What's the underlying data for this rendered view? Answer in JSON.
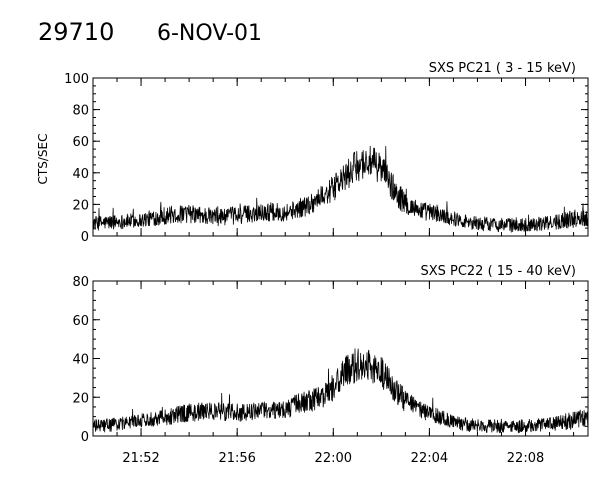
{
  "header": {
    "id": "29710",
    "date": "6-NOV-01"
  },
  "chart_data": [
    {
      "type": "line",
      "title": "SXS PC21  (  3 - 15 keV)",
      "ylabel": "CTS/SEC",
      "xlabel": "",
      "ylim": [
        0,
        100
      ],
      "yticks": [
        0,
        20,
        40,
        60,
        80,
        100
      ],
      "xlim_minutes": [
        -2,
        18.6
      ],
      "xticks": [
        "21:52",
        "21:56",
        "22:00",
        "22:04",
        "22:08"
      ],
      "xtick_minutes": [
        0,
        4,
        8,
        12,
        16
      ],
      "x_time_start": "21:52",
      "grid": false,
      "series": [
        {
          "values_profile": {
            "x_minutes": [
              -2.0,
              -1.0,
              0.0,
              1.0,
              2.0,
              3.0,
              4.0,
              5.0,
              6.0,
              6.5,
              7.0,
              7.5,
              8.0,
              8.5,
              9.0,
              9.5,
              10.0,
              10.5,
              11.0,
              11.5,
              12.0,
              13.0,
              14.0,
              15.0,
              16.0,
              17.0,
              18.0,
              18.6
            ],
            "y_mean": [
              8,
              9,
              10,
              13,
              14,
              12,
              13,
              15,
              15,
              17,
              20,
              25,
              30,
              37,
              45,
              47,
              43,
              30,
              20,
              17,
              15,
              11,
              8,
              7,
              7,
              8,
              11,
              12
            ],
            "noise_amplitude": [
              4,
              4,
              4,
              5,
              5,
              5,
              5,
              5,
              5,
              5,
              6,
              6,
              7,
              8,
              9,
              9,
              9,
              8,
              6,
              5,
              5,
              4,
              4,
              4,
              4,
              4,
              5,
              5
            ]
          }
        }
      ]
    },
    {
      "type": "line",
      "title": "SXS PC22  ( 15 - 40 keV)",
      "ylabel": "",
      "xlabel": "",
      "ylim": [
        0,
        80
      ],
      "yticks": [
        0,
        20,
        40,
        60,
        80
      ],
      "xlim_minutes": [
        -2,
        18.6
      ],
      "xticks": [
        "21:52",
        "21:56",
        "22:00",
        "22:04",
        "22:08"
      ],
      "xtick_minutes": [
        0,
        4,
        8,
        12,
        16
      ],
      "x_time_start": "21:52",
      "grid": false,
      "series": [
        {
          "values_profile": {
            "x_minutes": [
              -2.0,
              -1.0,
              0.0,
              1.0,
              2.0,
              3.0,
              4.0,
              5.0,
              6.0,
              6.5,
              7.0,
              7.5,
              8.0,
              8.5,
              9.0,
              9.5,
              10.0,
              10.5,
              11.0,
              11.5,
              12.0,
              13.0,
              14.0,
              15.0,
              16.0,
              17.0,
              18.0,
              18.6
            ],
            "y_mean": [
              5,
              6,
              8,
              10,
              12,
              13,
              12,
              13,
              14,
              16,
              18,
              20,
              25,
              33,
              37,
              36,
              33,
              25,
              18,
              14,
              12,
              7,
              5,
              5,
              5,
              6,
              8,
              9
            ],
            "noise_amplitude": [
              3,
              3,
              3,
              4,
              4,
              4,
              4,
              4,
              4,
              5,
              5,
              5,
              6,
              7,
              8,
              8,
              7,
              6,
              5,
              4,
              4,
              3,
              3,
              3,
              3,
              3,
              4,
              4
            ]
          }
        }
      ]
    }
  ]
}
